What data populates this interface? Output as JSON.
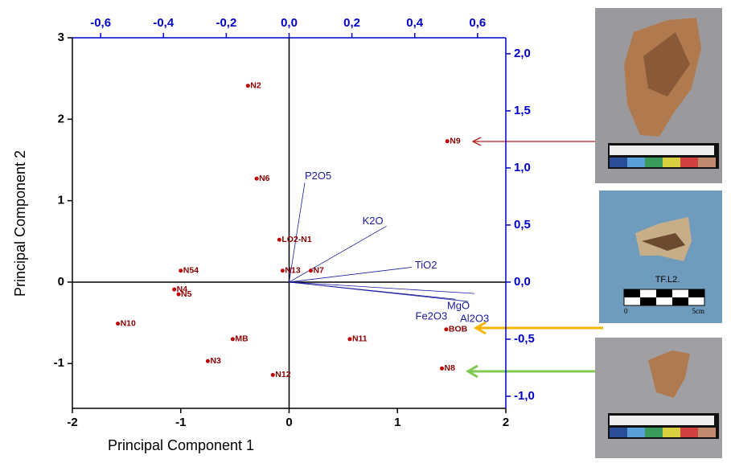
{
  "chart_data": {
    "type": "scatter",
    "xlabel": "Principal Component 1",
    "ylabel": "Principal Component 2",
    "xlim": [
      -2,
      2
    ],
    "ylim": [
      -1.55,
      3
    ],
    "xticks": [
      -2,
      -1,
      0,
      1,
      2
    ],
    "yticks": [
      -1,
      0,
      1,
      2,
      3
    ],
    "x2lim": [
      -0.69,
      0.69
    ],
    "y2lim": [
      -1.106,
      2.14
    ],
    "x2ticks": [
      {
        "value": -0.6,
        "label": "-0,6"
      },
      {
        "value": -0.4,
        "label": "-0,4"
      },
      {
        "value": -0.2,
        "label": "-0,2"
      },
      {
        "value": 0,
        "label": "0,0"
      },
      {
        "value": 0.2,
        "label": "0,2"
      },
      {
        "value": 0.4,
        "label": "0,4"
      },
      {
        "value": 0.6,
        "label": "0,6"
      }
    ],
    "y2ticks": [
      {
        "value": -1,
        "label": "-1,0"
      },
      {
        "value": -0.5,
        "label": "-0,5"
      },
      {
        "value": 0,
        "label": "0,0"
      },
      {
        "value": 0.5,
        "label": "0,5"
      },
      {
        "value": 1,
        "label": "1,0"
      },
      {
        "value": 1.5,
        "label": "1,5"
      },
      {
        "value": 2,
        "label": "2,0"
      }
    ],
    "points": {
      "color": "#c00000",
      "labels": [
        "N2",
        "N9",
        "N6",
        "LO2-N1",
        "N13",
        "N7",
        "N54",
        "N4",
        "N5",
        "N10",
        "MB",
        "N3",
        "N12",
        "N11",
        "BOB",
        "N8"
      ],
      "x": [
        -0.38,
        1.46,
        -0.3,
        -0.09,
        -0.06,
        0.2,
        -1.0,
        -1.06,
        -1.02,
        -1.58,
        -0.52,
        -0.75,
        -0.15,
        0.56,
        1.45,
        1.41
      ],
      "y": [
        2.41,
        1.73,
        1.27,
        0.52,
        0.14,
        0.14,
        0.14,
        -0.09,
        -0.15,
        -0.51,
        -0.7,
        -0.97,
        -1.14,
        -0.7,
        -0.58,
        -1.06
      ]
    },
    "vectors": {
      "color": "#1a1aa0",
      "axis": "y2",
      "labels": [
        "P2O5",
        "K2O",
        "TiO2",
        "MgO",
        "Fe2O3",
        "Al2O3"
      ],
      "x": [
        0.05,
        0.31,
        0.39,
        0.59,
        0.53,
        0.57
      ],
      "y": [
        0.87,
        0.49,
        0.13,
        -0.1,
        -0.15,
        -0.17
      ]
    }
  },
  "photos": {
    "caption": "TF.L2.",
    "scale_start": "0",
    "scale_end": "5cm"
  }
}
